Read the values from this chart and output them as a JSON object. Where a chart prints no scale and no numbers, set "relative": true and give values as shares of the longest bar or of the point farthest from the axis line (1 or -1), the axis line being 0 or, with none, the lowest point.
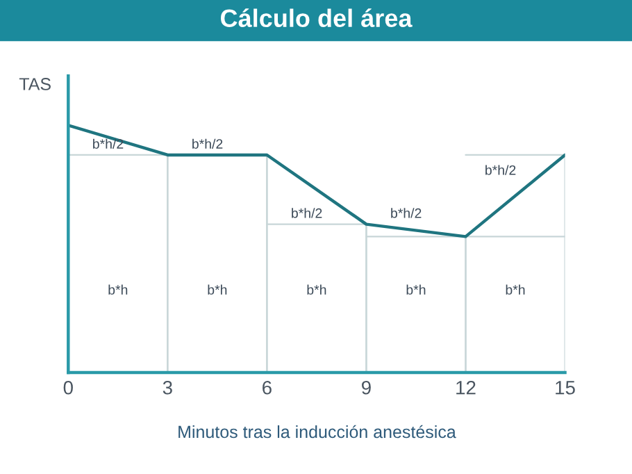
{
  "chart_data": {
    "type": "line",
    "title": "Cálculo del área",
    "xlabel": "Minutos tras la inducción anestésica",
    "ylabel": "TAS",
    "relative": true,
    "x": [
      0,
      3,
      6,
      9,
      12,
      15
    ],
    "xlim": [
      0,
      15
    ],
    "xticks": [
      0,
      3,
      6,
      9,
      12,
      15
    ],
    "tick_labels": "x",
    "grid": "x",
    "marker": "none",
    "line_style": "solid",
    "series": [
      {
        "color": "#1f7580",
        "values": [
          1,
          0.88,
          0.88,
          0.6,
          0.55,
          0.88
        ]
      }
    ],
    "annotations": [
      "b*h/2",
      "b*h/2",
      "b*h/2",
      "b*h/2",
      "b*h/2",
      "b*h",
      "b*h",
      "b*h",
      "b*h",
      "b*h"
    ]
  }
}
